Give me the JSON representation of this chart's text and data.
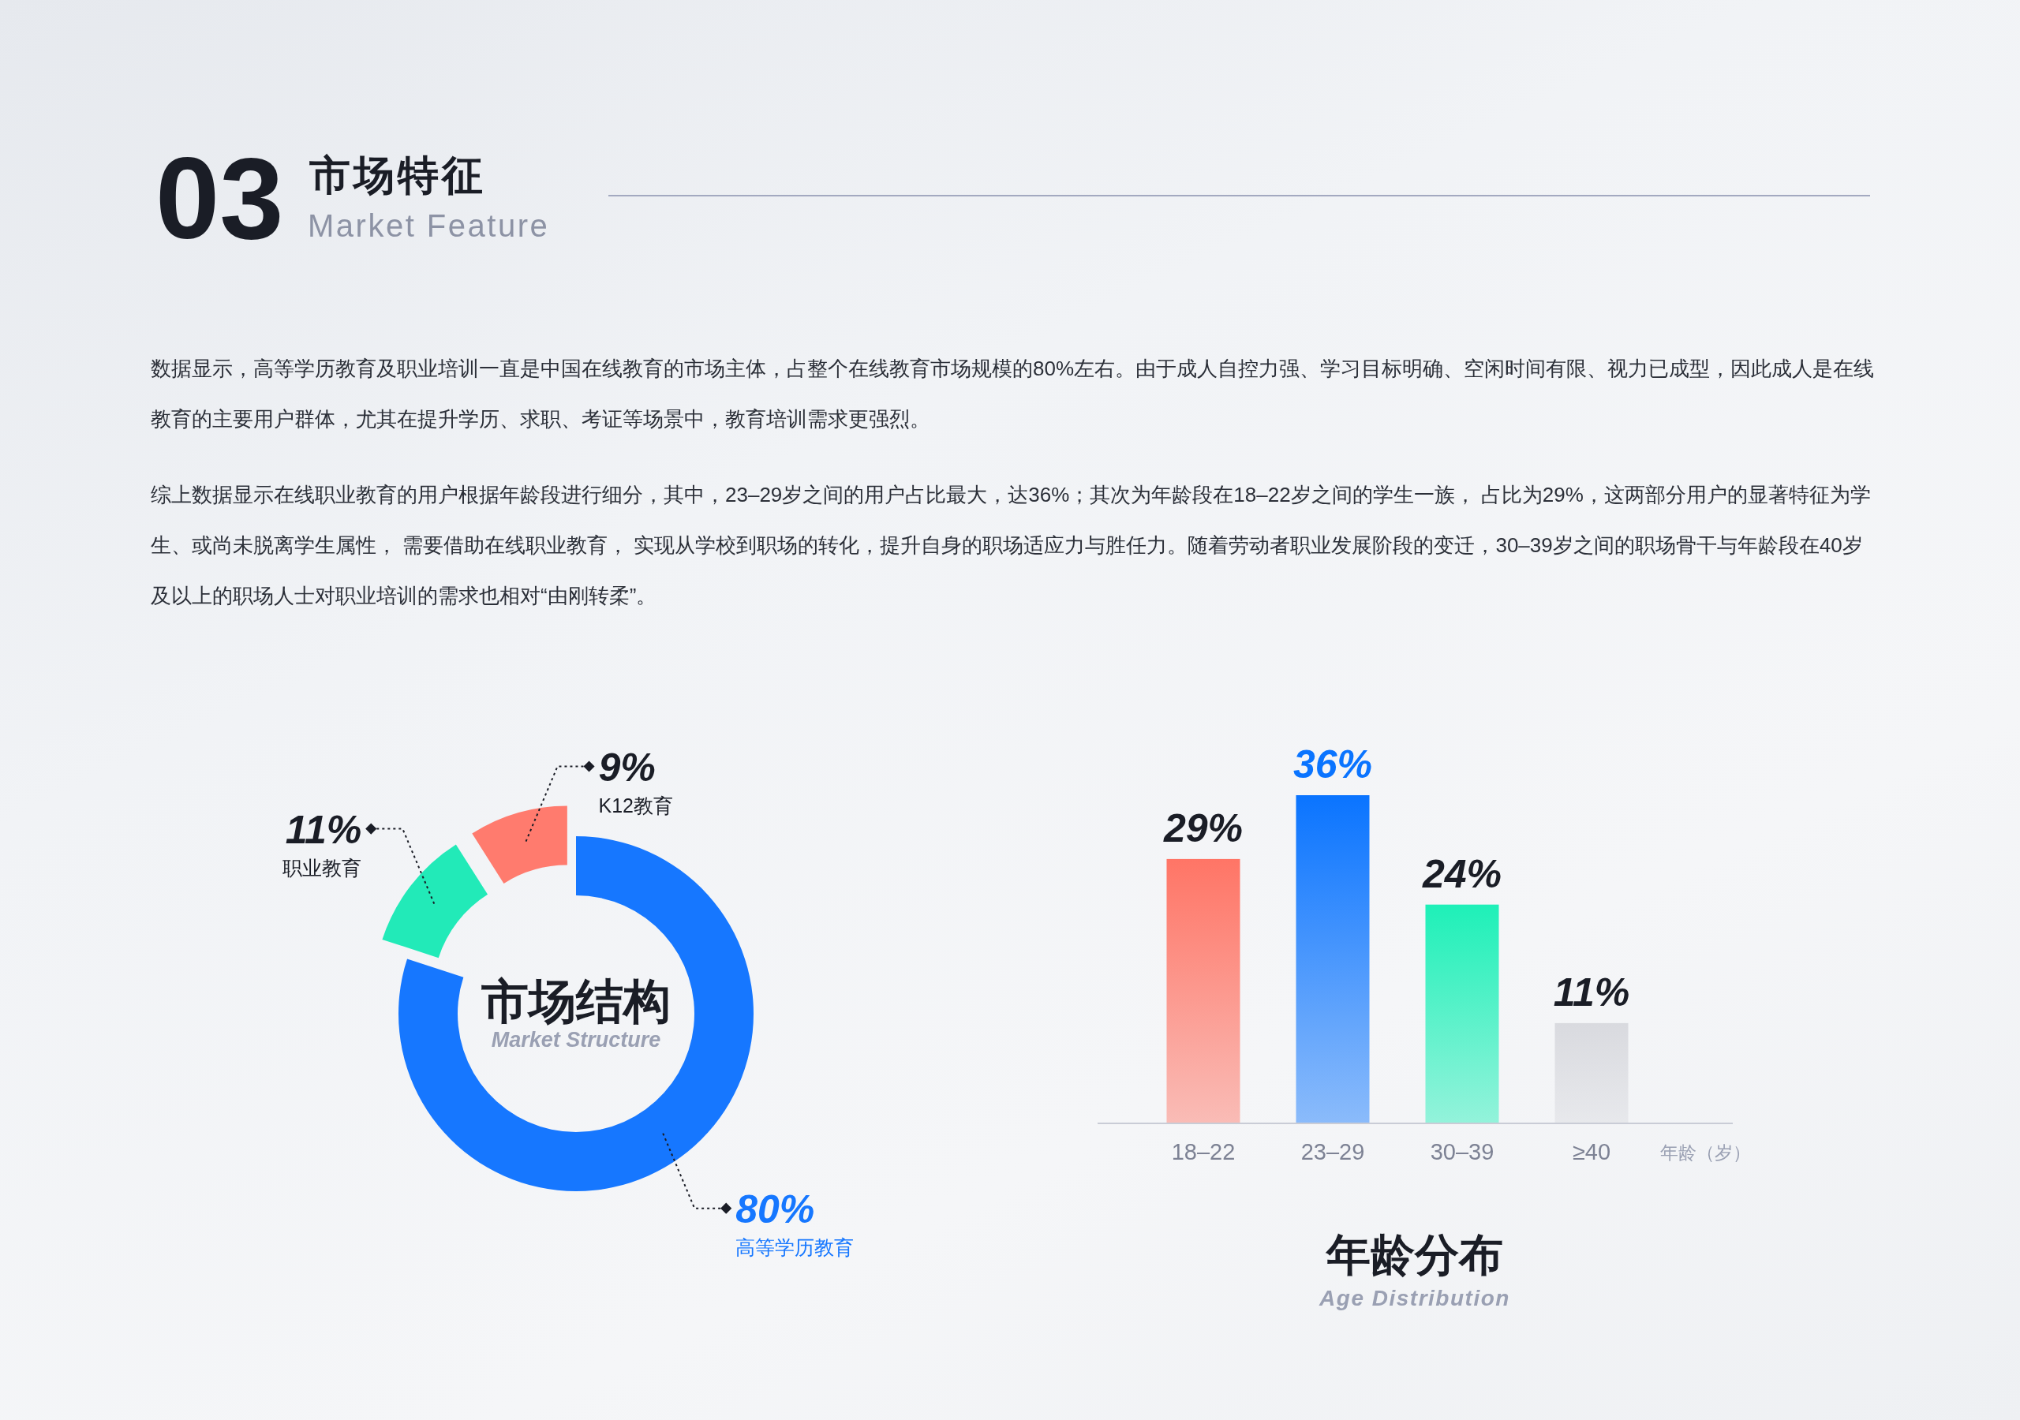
{
  "chart_data": [
    {
      "type": "other",
      "title": "市场特征",
      "subtitle": "Market Feature",
      "annotations": [
        "03",
        "数据显示，高等学历教育及职业培训一直是中国在线教育的市场主体，占整个在线教育市场规模的80%左右。由于成人自控力强、学习目标明确、空闲时间有限、视力已成型，因此成人是在线教育的主要用户群体，尤其在提升学历、求职、考证等场景中，教育培训需求更强烈。",
        "综上数据显示在线职业教育的用户根据年龄段进行细分，其中，23–29岁之间的用户占比最大，达36%；其次为年龄段在18–22岁之间的学生一族， 占比为29%，这两部分用户的显著特征为学生、或尚未脱离学生属性， 需要借助在线职业教育， 实现从学校到职场的转化，提升自身的职场适应力与胜任力。随着劳动者职业发展阶段的变迁，30–39岁之间的职场骨干与年龄段在40岁及以上的职场人士对职业培训的需求也相对“由刚转柔”。"
      ]
    },
    {
      "type": "donut",
      "title": "市场结构",
      "subtitle": "Market Structure",
      "categories": [
        "高等学历教育",
        "职业教育",
        "K12教育"
      ],
      "values": [
        80,
        11,
        9
      ],
      "value_labels": [
        "80%",
        "11%",
        "9%"
      ],
      "colors": [
        "#1677ff",
        "#22eab8",
        "#ff7b6e"
      ]
    },
    {
      "type": "bar",
      "title": "年龄分布",
      "subtitle": "Age Distribution",
      "categories": [
        "18–22",
        "23–29",
        "30–39",
        "≥40"
      ],
      "values": [
        29,
        36,
        24,
        11
      ],
      "value_labels": [
        "29%",
        "36%",
        "24%",
        "11%"
      ],
      "colors": [
        "#ff7566",
        "#0a74ff",
        "#1ef0b8",
        "#d9dadf"
      ],
      "xlabel": "年龄（岁）"
    }
  ]
}
